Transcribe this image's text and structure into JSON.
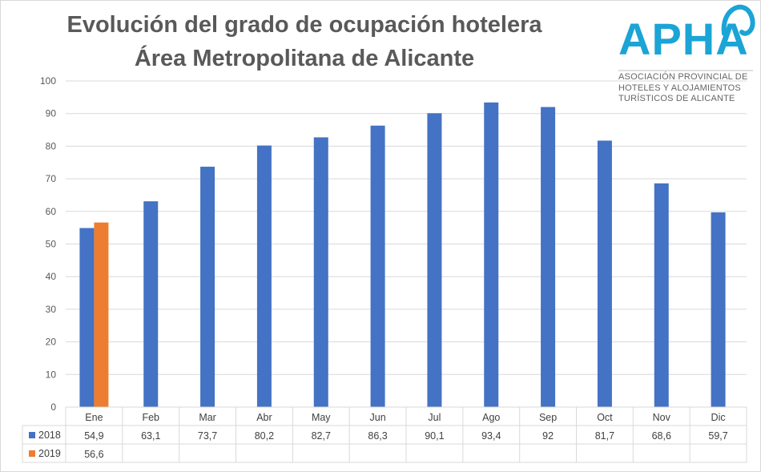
{
  "title_line1": "Evolución del grado de ocupación hotelera",
  "title_line2": "Área Metropolitana de Alicante",
  "logo": {
    "name": "APHA",
    "subtitle_lines": [
      "ASOCIACIÓN PROVINCIAL DE",
      "HOTELES Y ALOJAMIENTOS",
      "TURÍSTICOS DE ALICANTE"
    ],
    "color": "#1ba4d6"
  },
  "chart_data": {
    "type": "bar",
    "categories": [
      "Ene",
      "Feb",
      "Mar",
      "Abr",
      "May",
      "Jun",
      "Jul",
      "Ago",
      "Sep",
      "Oct",
      "Nov",
      "Dic"
    ],
    "series": [
      {
        "name": "2018",
        "color": "#4472c4",
        "values": [
          54.9,
          63.1,
          73.7,
          80.2,
          82.7,
          86.3,
          90.1,
          93.4,
          92,
          81.7,
          68.6,
          59.7
        ],
        "labels": [
          "54,9",
          "63,1",
          "73,7",
          "80,2",
          "82,7",
          "86,3",
          "90,1",
          "93,4",
          "92",
          "81,7",
          "68,6",
          "59,7"
        ]
      },
      {
        "name": "2019",
        "color": "#ed7d31",
        "values": [
          56.6,
          null,
          null,
          null,
          null,
          null,
          null,
          null,
          null,
          null,
          null,
          null
        ],
        "labels": [
          "56,6",
          "",
          "",
          "",
          "",
          "",
          "",
          "",
          "",
          "",
          "",
          ""
        ]
      }
    ],
    "ylim": [
      0,
      100
    ],
    "yticks": [
      0,
      10,
      20,
      30,
      40,
      50,
      60,
      70,
      80,
      90,
      100
    ],
    "grid": true,
    "legend": "data-table"
  }
}
